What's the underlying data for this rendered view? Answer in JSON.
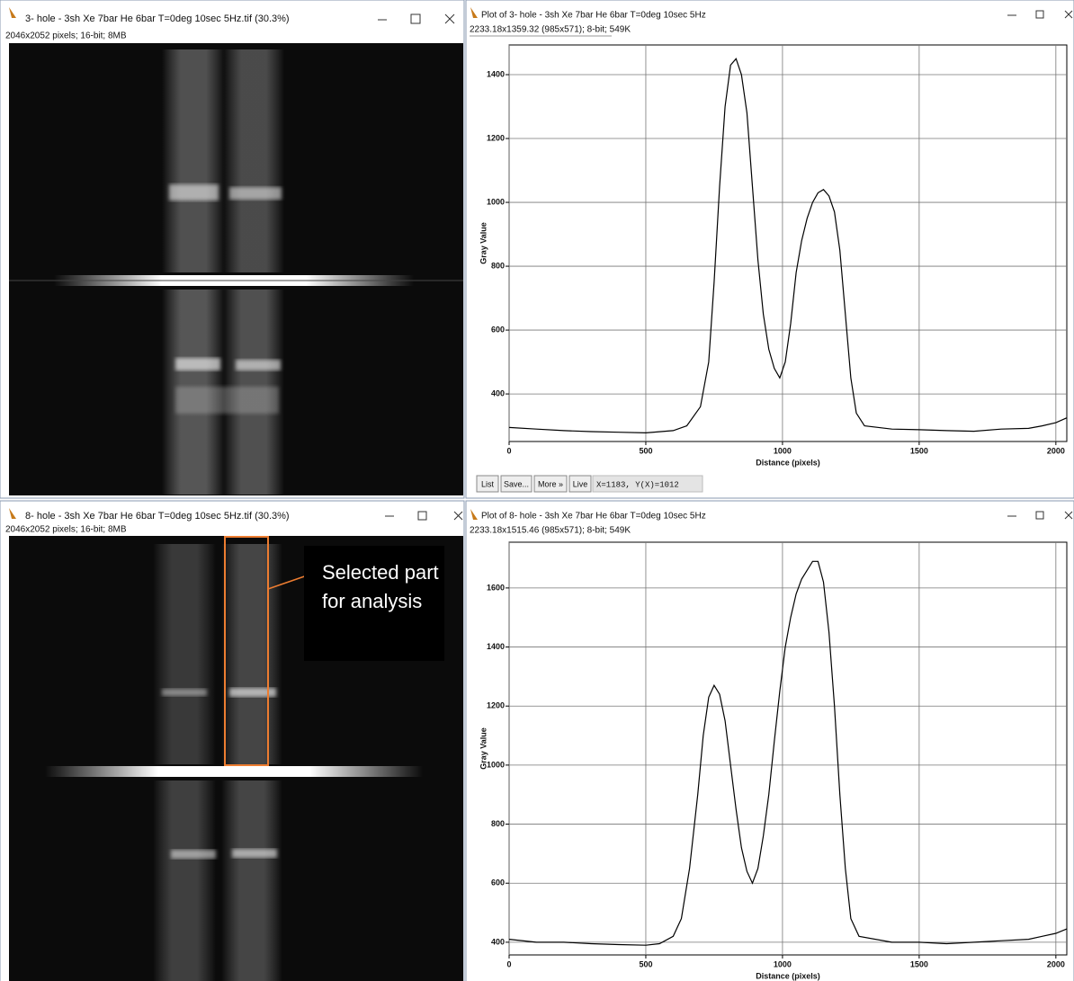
{
  "windows": [
    {
      "title": "3- hole - 3sh Xe 7bar He 6bar T=0deg 10sec 5Hz.tif (30.3%)",
      "info": "2046x2052 pixels; 16-bit; 8MB"
    },
    {
      "title": "Plot of 3- hole - 3sh Xe 7bar He 6bar T=0deg 10sec 5Hz",
      "info": "2233.18x1359.32  (985x571); 8-bit; 549K"
    },
    {
      "title": "8- hole - 3sh Xe 7bar He 6bar T=0deg 10sec 5Hz.tif (30.3%)",
      "info": "2046x2052 pixels; 16-bit; 8MB"
    },
    {
      "title": "Plot of 8- hole - 3sh Xe 7bar He 6bar T=0deg 10sec 5Hz",
      "info": "2233.18x1515.46  (985x571); 8-bit; 549K"
    }
  ],
  "plot_buttons": [
    "List",
    "Save...",
    "More »",
    "Live"
  ],
  "status": "X=1183, Y(X)=1012",
  "annotation": "Selected part for analysis",
  "chart_data": [
    {
      "type": "line",
      "x_label": "Distance (pixels)",
      "y_label": "Gray Value",
      "color": "#000000",
      "grid": true,
      "x": [
        0,
        100,
        200,
        300,
        400,
        500,
        600,
        650,
        700,
        730,
        750,
        770,
        790,
        810,
        830,
        850,
        870,
        890,
        910,
        930,
        950,
        970,
        990,
        1010,
        1030,
        1050,
        1070,
        1090,
        1110,
        1130,
        1150,
        1170,
        1190,
        1210,
        1230,
        1250,
        1270,
        1300,
        1400,
        1500,
        1600,
        1700,
        1800,
        1900,
        1950,
        2000,
        2040
      ],
      "values": [
        295,
        290,
        285,
        282,
        280,
        278,
        285,
        300,
        360,
        500,
        750,
        1050,
        1300,
        1430,
        1450,
        1400,
        1280,
        1050,
        820,
        650,
        540,
        480,
        450,
        500,
        620,
        780,
        880,
        950,
        1000,
        1030,
        1040,
        1020,
        970,
        850,
        650,
        450,
        340,
        300,
        290,
        288,
        285,
        283,
        290,
        292,
        300,
        310,
        325
      ],
      "xlim": [
        0,
        2040
      ],
      "ylim": [
        251,
        1493
      ],
      "xticks": [
        0,
        500,
        1000,
        1500,
        2000
      ],
      "yticks": [
        400,
        600,
        800,
        1000,
        1200,
        1400
      ]
    },
    {
      "type": "line",
      "x_label": "Distance (pixels)",
      "y_label": "Gray Value",
      "color": "#000000",
      "grid": true,
      "x": [
        0,
        100,
        200,
        300,
        400,
        500,
        550,
        600,
        630,
        660,
        690,
        710,
        730,
        750,
        770,
        790,
        810,
        830,
        850,
        870,
        890,
        910,
        930,
        950,
        970,
        990,
        1010,
        1030,
        1050,
        1070,
        1090,
        1110,
        1130,
        1150,
        1170,
        1190,
        1210,
        1230,
        1250,
        1280,
        1400,
        1500,
        1600,
        1700,
        1800,
        1900,
        1950,
        2000,
        2040
      ],
      "values": [
        410,
        400,
        400,
        395,
        392,
        390,
        395,
        420,
        480,
        650,
        900,
        1100,
        1230,
        1270,
        1240,
        1150,
        1000,
        850,
        720,
        640,
        600,
        650,
        760,
        900,
        1080,
        1250,
        1400,
        1500,
        1580,
        1630,
        1660,
        1690,
        1690,
        1620,
        1450,
        1200,
        900,
        650,
        480,
        420,
        400,
        400,
        395,
        400,
        405,
        410,
        420,
        430,
        445
      ],
      "xlim": [
        0,
        2040
      ],
      "ylim": [
        357,
        1755
      ],
      "xticks": [
        0,
        500,
        1000,
        1500,
        2000
      ],
      "yticks": [
        400,
        600,
        800,
        1000,
        1200,
        1400,
        1600
      ]
    }
  ]
}
